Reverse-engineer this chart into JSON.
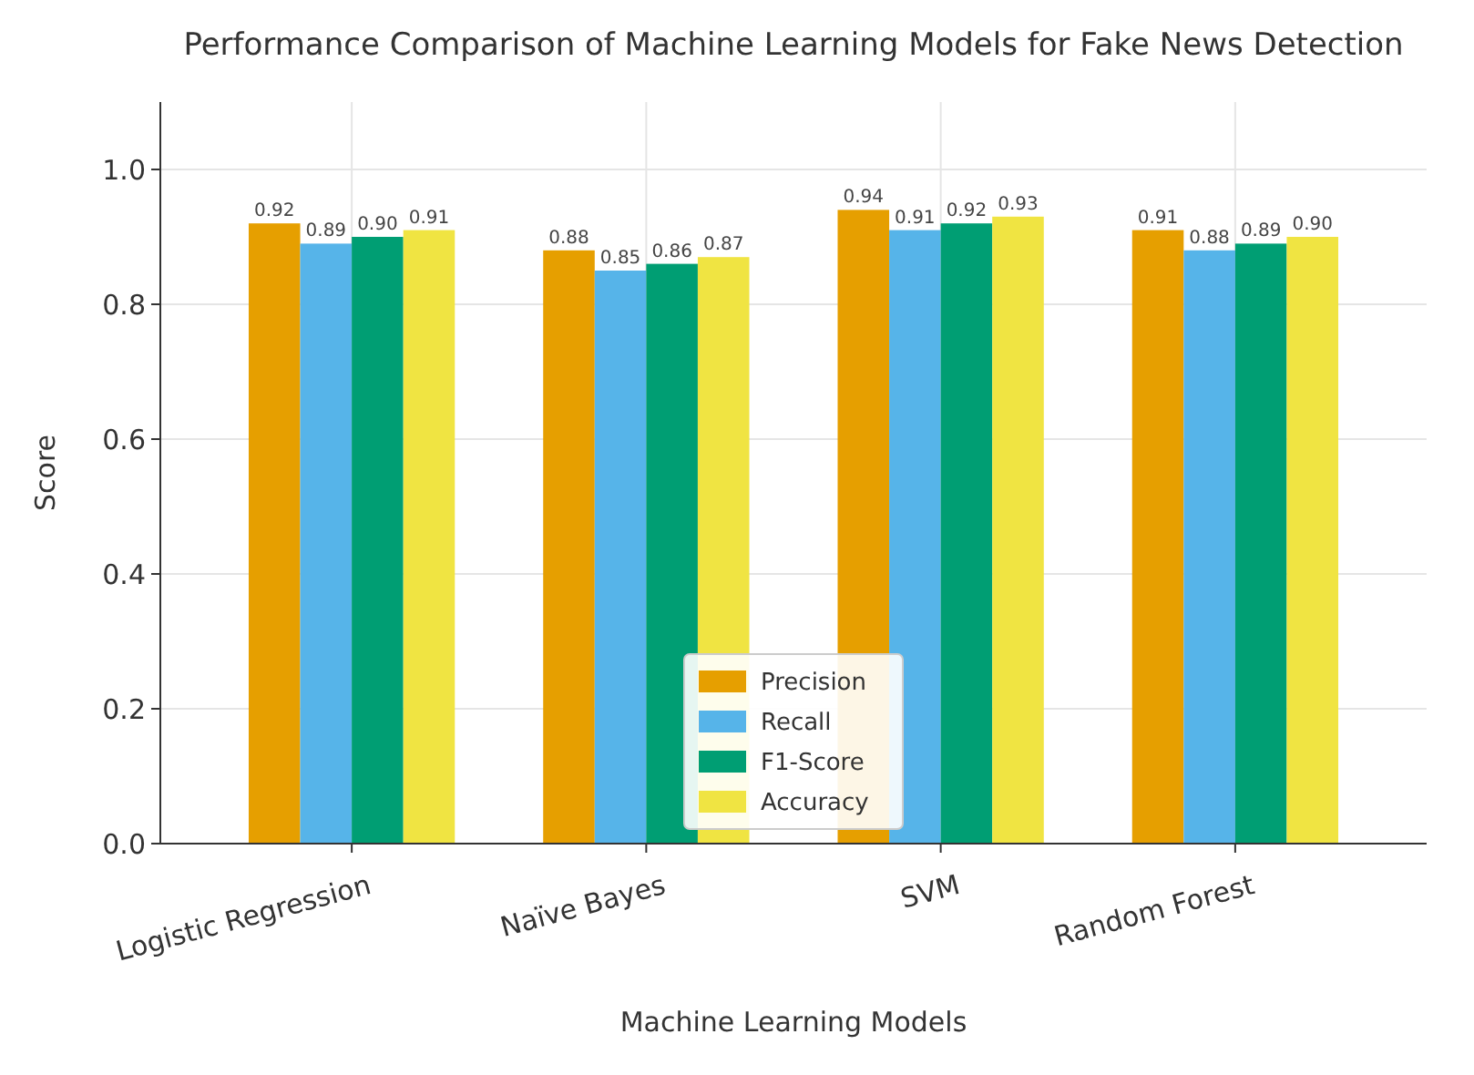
{
  "chart_data": {
    "type": "bar",
    "title": "Performance Comparison of Machine Learning Models for Fake News Detection",
    "xlabel": "Machine Learning Models",
    "ylabel": "Score",
    "categories": [
      "Logistic Regression",
      "Naïve Bayes",
      "SVM",
      "Random Forest"
    ],
    "series": [
      {
        "name": "Precision",
        "color": "#e69f00",
        "values": [
          0.92,
          0.88,
          0.94,
          0.91
        ],
        "value_labels": [
          "0.92",
          "0.88",
          "0.94",
          "0.91"
        ]
      },
      {
        "name": "Recall",
        "color": "#56b4e9",
        "values": [
          0.89,
          0.85,
          0.91,
          0.88
        ],
        "value_labels": [
          "0.89",
          "0.85",
          "0.91",
          "0.88"
        ]
      },
      {
        "name": "F1-Score",
        "color": "#009e73",
        "values": [
          0.9,
          0.86,
          0.92,
          0.89
        ],
        "value_labels": [
          "0.90",
          "0.86",
          "0.92",
          "0.89"
        ]
      },
      {
        "name": "Accuracy",
        "color": "#f0e442",
        "values": [
          0.91,
          0.87,
          0.93,
          0.9
        ],
        "value_labels": [
          "0.91",
          "0.87",
          "0.93",
          "0.90"
        ]
      }
    ],
    "ylim": [
      0,
      1.1
    ],
    "yticks": [
      {
        "value": 0,
        "label": "0.0"
      },
      {
        "value": 0.2,
        "label": "0.2"
      },
      {
        "value": 0.4,
        "label": "0.4"
      },
      {
        "value": 0.6,
        "label": "0.6"
      },
      {
        "value": 0.8,
        "label": "0.8"
      },
      {
        "value": 1,
        "label": "1.0"
      }
    ],
    "grid": true,
    "legend": "bottom"
  }
}
